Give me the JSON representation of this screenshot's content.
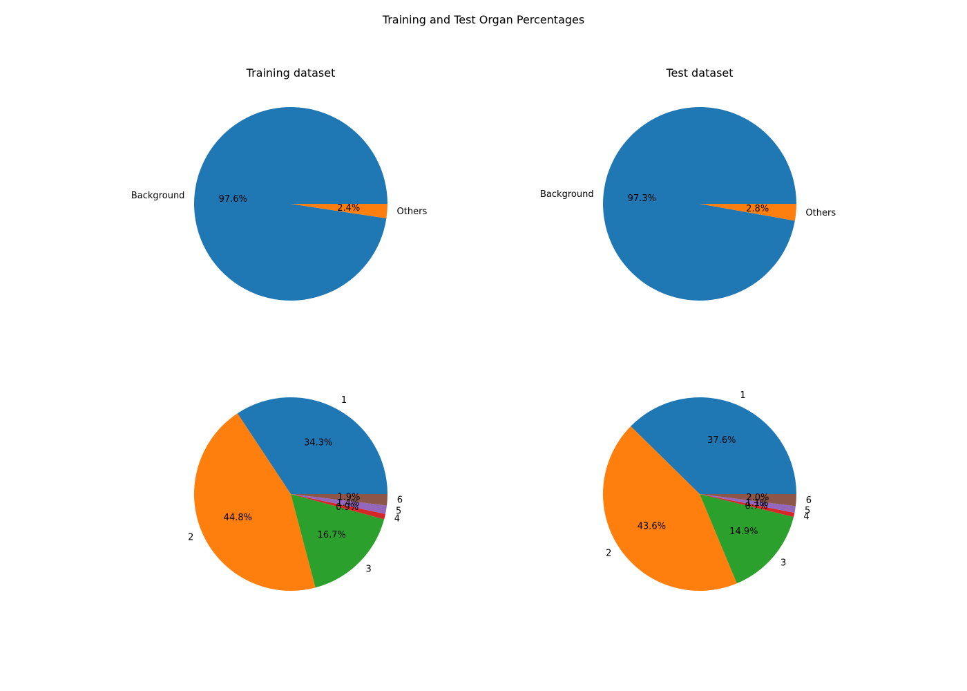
{
  "figure": {
    "title": "Training and Test Organ Percentages"
  },
  "chart_data": [
    {
      "type": "pie",
      "title": "Training dataset",
      "labels": [
        "Background",
        "Others"
      ],
      "values": [
        97.6,
        2.4
      ],
      "pct_labels": [
        "97.6%",
        "2.4%"
      ],
      "colors": [
        "#1f77b4",
        "#ff7f0e"
      ]
    },
    {
      "type": "pie",
      "title": "Test dataset",
      "labels": [
        "Background",
        "Others"
      ],
      "values": [
        97.3,
        2.8
      ],
      "pct_labels": [
        "97.3%",
        "2.8%"
      ],
      "colors": [
        "#1f77b4",
        "#ff7f0e"
      ]
    },
    {
      "type": "pie",
      "title": "",
      "labels": [
        "1",
        "2",
        "3",
        "4",
        "5",
        "6"
      ],
      "values": [
        34.3,
        44.8,
        16.7,
        0.9,
        1.4,
        1.9
      ],
      "pct_labels": [
        "34.3%",
        "44.8%",
        "16.7%",
        "0.9%",
        "1.4%",
        "1.9%"
      ],
      "colors": [
        "#1f77b4",
        "#ff7f0e",
        "#2ca02c",
        "#d62728",
        "#9467bd",
        "#8c564b"
      ]
    },
    {
      "type": "pie",
      "title": "",
      "labels": [
        "1",
        "2",
        "3",
        "4",
        "5",
        "6"
      ],
      "values": [
        37.6,
        43.6,
        14.9,
        0.7,
        1.1,
        2.0
      ],
      "pct_labels": [
        "37.6%",
        "43.6%",
        "14.9%",
        "0.7%",
        "1.1%",
        "2.0%"
      ],
      "colors": [
        "#1f77b4",
        "#ff7f0e",
        "#2ca02c",
        "#d62728",
        "#9467bd",
        "#8c564b"
      ]
    }
  ]
}
